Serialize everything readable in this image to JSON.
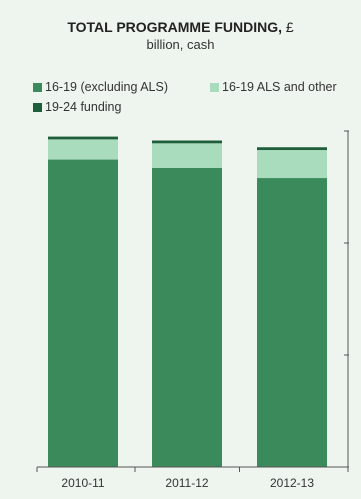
{
  "chart_data": {
    "type": "bar",
    "stacked": true,
    "title": "TOTAL PROGRAMME  FUNDING,",
    "title_unit": "£",
    "subtitle": "billion, cash",
    "categories": [
      "2010-11",
      "2011-12",
      "2012-13"
    ],
    "series": [
      {
        "name": "16-19 (excluding ALS)",
        "color": "#3a8a5c",
        "values": [
          5.49,
          5.34,
          5.16
        ]
      },
      {
        "name": "16-19 ALS and other",
        "color": "#a8dcbc",
        "values": [
          0.36,
          0.44,
          0.5
        ]
      },
      {
        "name": "19-24 funding",
        "color": "#1f5e3a",
        "values": [
          0.05,
          0.05,
          0.05
        ]
      }
    ],
    "ylim": [
      0,
      6
    ],
    "grid": false,
    "legend": "top-left",
    "ytick_values": [
      0,
      2,
      4,
      6
    ]
  }
}
